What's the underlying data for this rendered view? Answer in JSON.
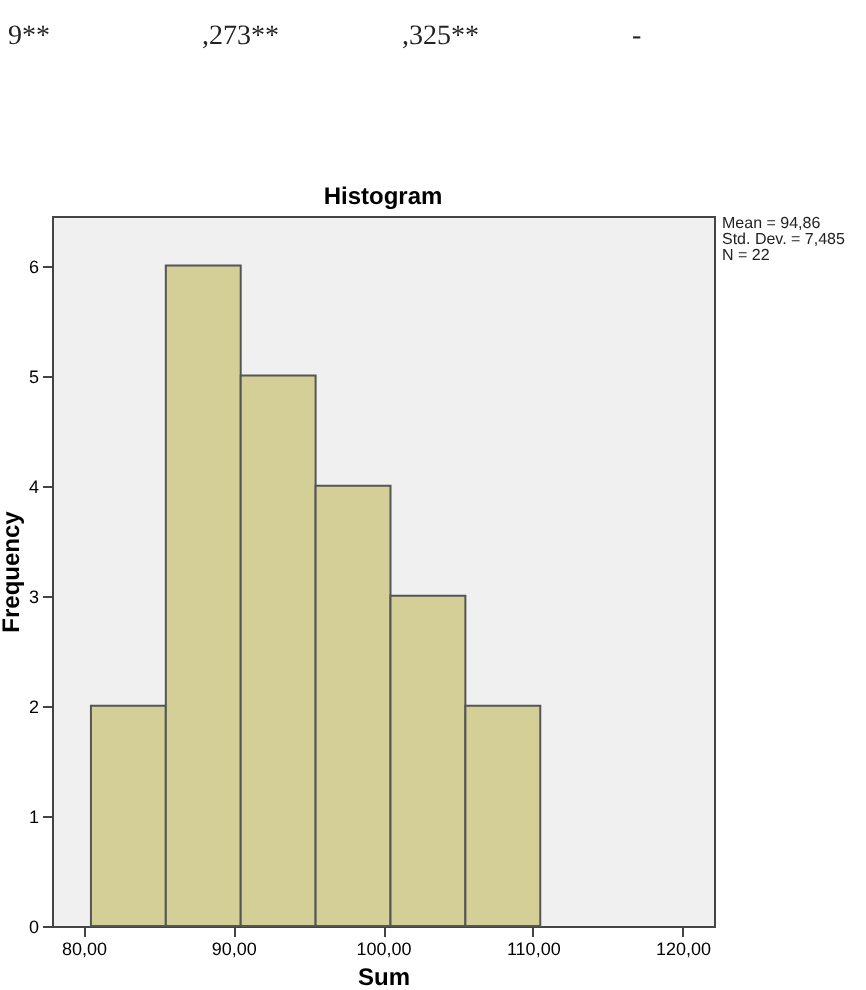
{
  "chart_data": {
    "type": "histogram",
    "title": "Histogram",
    "xlabel": "Sum",
    "ylabel": "Frequency",
    "bins": [
      80.5,
      85.5,
      90.5,
      95.5,
      100.5,
      105.5,
      110.5
    ],
    "values": [
      2,
      6,
      5,
      4,
      3,
      2
    ],
    "color": "#d3cf96",
    "xlim": [
      77.9,
      122.1
    ],
    "xticks": [
      {
        "value": 80,
        "label": "80,00"
      },
      {
        "value": 90,
        "label": "90,00"
      },
      {
        "value": 100,
        "label": "100,00"
      },
      {
        "value": 110,
        "label": "110,00"
      },
      {
        "value": 120,
        "label": "120,00"
      }
    ],
    "ylim": [
      0,
      6.45
    ],
    "yticks": [
      0,
      1,
      2,
      3,
      4,
      5,
      6
    ],
    "grid": false,
    "annotations": [
      "Mean = 94,86",
      "Std. Dev. = 7,485",
      "N = 22",
      "9**",
      ",273**",
      ",325**",
      "-"
    ]
  }
}
